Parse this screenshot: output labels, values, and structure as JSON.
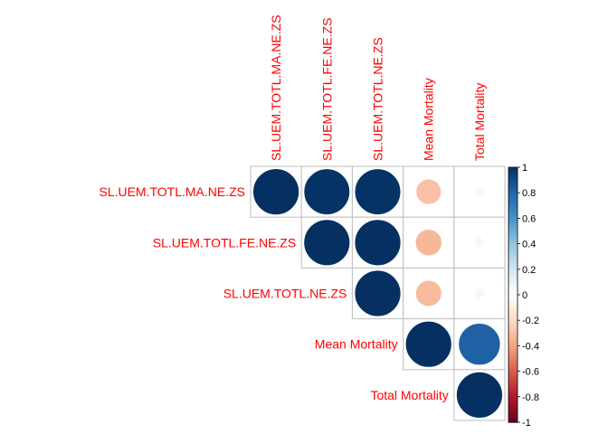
{
  "chart_data": {
    "type": "heatmap",
    "subtype": "correlogram-upper-circle",
    "variables": [
      "SL.UEM.TOTL.MA.NE.ZS",
      "SL.UEM.TOTL.FE.NE.ZS",
      "SL.UEM.TOTL.NE.ZS",
      "Mean Mortality",
      "Total Mortality"
    ],
    "matrix": [
      [
        1.0,
        0.99,
        0.99,
        -0.3,
        0.05
      ],
      [
        0.99,
        1.0,
        1.0,
        -0.33,
        0.05
      ],
      [
        0.99,
        1.0,
        1.0,
        -0.32,
        0.05
      ],
      [
        -0.3,
        -0.33,
        -0.32,
        1.0,
        0.82
      ],
      [
        0.05,
        0.05,
        0.05,
        0.82,
        1.0
      ]
    ],
    "colorbar": {
      "range": [
        -1,
        1
      ],
      "ticks": [
        "-1",
        "-0.8",
        "-0.6",
        "-0.4",
        "-0.2",
        "0",
        "0.2",
        "0.4",
        "0.6",
        "0.8",
        "1"
      ]
    },
    "colors": {
      "negative_end": "#67001F",
      "neutral": "#FFFFFF",
      "positive_end": "#053061",
      "label": "#FF0000",
      "grid": "#BEBEBE"
    },
    "legend_position": "right"
  }
}
